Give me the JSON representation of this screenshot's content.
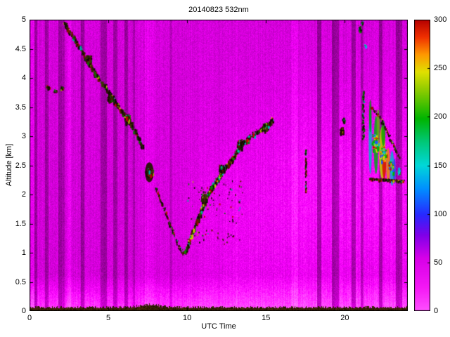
{
  "chart_data": {
    "type": "heatmap",
    "title": "20140823 532nm",
    "xlabel": "UTC Time",
    "ylabel": "Altitude [km]",
    "xlim": [
      0,
      24
    ],
    "ylim": [
      0,
      5
    ],
    "xticks": [
      0,
      5,
      10,
      15,
      20
    ],
    "yticks": [
      0,
      0.5,
      1,
      1.5,
      2,
      2.5,
      3,
      3.5,
      4,
      4.5,
      5
    ],
    "grid": false,
    "legend": "none",
    "colorbar": {
      "min": 0,
      "max": 300,
      "ticks": [
        0,
        50,
        100,
        150,
        200,
        250,
        300
      ],
      "position": "right",
      "stops": [
        [
          0.0,
          "#ff50ff"
        ],
        [
          0.08,
          "#f518f5"
        ],
        [
          0.18,
          "#d800e8"
        ],
        [
          0.26,
          "#8000e8"
        ],
        [
          0.33,
          "#2828ff"
        ],
        [
          0.42,
          "#0090ff"
        ],
        [
          0.5,
          "#00d8d8"
        ],
        [
          0.58,
          "#00c878"
        ],
        [
          0.66,
          "#00b400"
        ],
        [
          0.76,
          "#90cc00"
        ],
        [
          0.82,
          "#e0e000"
        ],
        [
          0.88,
          "#ff9800"
        ],
        [
          0.94,
          "#f03000"
        ],
        [
          1.0,
          "#b40000"
        ]
      ]
    },
    "description": "Lidar backscatter curtain plot: magenta low-signal background with vertical stripe artifacts, dark surface return at 0 km, descending aerosol/cloud layer from 5 km near 02 UTC to 1 km near 09:45 UTC, ascending cloud-top line from 1 km at 10 UTC to 3.3 km at 15:30 UTC, isolated streaks at 17.5 and 19.8 UTC, and a strong multicolor (cyan/green/yellow/red) cloud cluster 21.5-23.5 UTC between 2.2 and 3.6 km",
    "render": {
      "seed": 1234567,
      "base": 0.8,
      "stripes": [
        [
          0.1,
          0.25,
          1.12
        ],
        [
          0.3,
          0.45,
          0.72
        ],
        [
          1.0,
          1.18,
          0.74
        ],
        [
          1.85,
          2.0,
          0.72
        ],
        [
          2.05,
          2.2,
          0.78
        ],
        [
          2.35,
          2.6,
          1.1
        ],
        [
          3.25,
          3.45,
          0.7
        ],
        [
          4.5,
          4.66,
          0.74
        ],
        [
          4.7,
          4.86,
          0.72
        ],
        [
          5.3,
          5.52,
          0.74
        ],
        [
          6.0,
          6.22,
          0.72
        ],
        [
          6.55,
          6.65,
          0.8
        ],
        [
          7.3,
          7.9,
          1.08
        ],
        [
          8.9,
          9.0,
          0.85
        ],
        [
          16.6,
          17.0,
          1.08
        ],
        [
          18.25,
          18.45,
          0.68
        ],
        [
          19.2,
          19.38,
          0.66
        ],
        [
          19.42,
          19.58,
          0.72
        ],
        [
          20.45,
          20.65,
          0.68
        ],
        [
          21.0,
          21.15,
          0.72
        ],
        [
          22.15,
          22.33,
          0.7
        ],
        [
          23.25,
          23.42,
          0.66
        ],
        [
          23.47,
          23.62,
          0.72
        ]
      ],
      "palettes": {
        "dark": [
          [
            "#120a02",
            38
          ],
          [
            "#2b1c05",
            20
          ],
          [
            "#473006",
            10
          ],
          [
            "#6b1200",
            8
          ],
          [
            "#0a7000",
            9
          ],
          [
            "#00a8a8",
            4
          ],
          [
            "#b8b800",
            4
          ],
          [
            "#c00000",
            7
          ]
        ],
        "darkC": [
          [
            "#120a02",
            32
          ],
          [
            "#2b1c05",
            16
          ],
          [
            "#473006",
            8
          ],
          [
            "#6b1200",
            9
          ],
          [
            "#0a8400",
            12
          ],
          [
            "#00b8b8",
            8
          ],
          [
            "#c8c800",
            7
          ],
          [
            "#d00000",
            8
          ]
        ],
        "darkG": [
          [
            "#101202",
            38
          ],
          [
            "#0a6000",
            24
          ],
          [
            "#0c8800",
            16
          ],
          [
            "#123005",
            10
          ],
          [
            "#00a0a0",
            12
          ]
        ],
        "cyanish": [
          [
            "#00c8d8",
            45
          ],
          [
            "#2060ff",
            25
          ],
          [
            "#00e0e0",
            20
          ],
          [
            "#0a8800",
            10
          ]
        ],
        "bright": [
          [
            "#00c8c8",
            18
          ],
          [
            "#00b400",
            22
          ],
          [
            "#d8d800",
            22
          ],
          [
            "#ff8800",
            10
          ],
          [
            "#d00000",
            14
          ],
          [
            "#2050ff",
            14
          ]
        ]
      },
      "features": [
        {
          "kind": "path",
          "palette": "dark",
          "count": 430,
          "sx": 2.5,
          "sy": 4,
          "smin": 1,
          "smax": 3,
          "points": [
            [
              2.15,
              4.97
            ],
            [
              2.5,
              4.8
            ],
            [
              3.0,
              4.6
            ],
            [
              3.5,
              4.38
            ],
            [
              4.05,
              4.12
            ],
            [
              4.6,
              3.92
            ],
            [
              5.15,
              3.7
            ],
            [
              5.7,
              3.48
            ],
            [
              6.25,
              3.3
            ],
            [
              6.75,
              3.05
            ],
            [
              7.1,
              2.82
            ]
          ]
        },
        {
          "kind": "cluster",
          "palette": "dark",
          "count": 150,
          "sx": 5,
          "sy": 7,
          "smin": 1,
          "smax": 3,
          "t": 3.7,
          "a": 4.32
        },
        {
          "kind": "cluster",
          "palette": "dark",
          "count": 120,
          "sx": 4,
          "sy": 6,
          "smin": 1,
          "smax": 3,
          "t": 5.05,
          "a": 3.66
        },
        {
          "kind": "cluster",
          "palette": "dark",
          "count": 130,
          "sx": 5,
          "sy": 7,
          "smin": 1,
          "smax": 3,
          "t": 6.15,
          "a": 3.32
        },
        {
          "kind": "cluster",
          "palette": "dark",
          "count": 35,
          "sx": 4,
          "sy": 4,
          "smin": 1,
          "smax": 2,
          "t": 1.15,
          "a": 3.85
        },
        {
          "kind": "cluster",
          "palette": "dark",
          "count": 25,
          "sx": 4,
          "sy": 3,
          "smin": 1,
          "smax": 2,
          "t": 1.6,
          "a": 3.78
        },
        {
          "kind": "cluster",
          "palette": "dark",
          "count": 30,
          "sx": 4,
          "sy": 4,
          "smin": 1,
          "smax": 2,
          "t": 2.05,
          "a": 3.82
        },
        {
          "kind": "blob",
          "t": 7.6,
          "a": 2.38,
          "rt": 0.28,
          "ra": 0.17,
          "color": "#241603",
          "alpha": 0.95
        },
        {
          "kind": "cluster",
          "palette": "dark",
          "count": 210,
          "sx": 6,
          "sy": 7,
          "smin": 1,
          "smax": 3,
          "t": 7.6,
          "a": 2.38
        },
        {
          "kind": "path",
          "palette": "dark",
          "count": 120,
          "sx": 2.5,
          "sy": 3.5,
          "smin": 1,
          "smax": 2,
          "points": [
            [
              7.95,
              2.15
            ],
            [
              8.45,
              1.8
            ],
            [
              8.95,
              1.45
            ],
            [
              9.45,
              1.12
            ],
            [
              9.75,
              1.0
            ]
          ]
        },
        {
          "kind": "path",
          "palette": "darkC",
          "count": 640,
          "sx": 2,
          "sy": 5,
          "smin": 1,
          "smax": 3,
          "points": [
            [
              9.85,
              1.02
            ],
            [
              10.35,
              1.38
            ],
            [
              10.85,
              1.72
            ],
            [
              11.25,
              2.0
            ],
            [
              11.75,
              2.22
            ],
            [
              12.25,
              2.42
            ],
            [
              12.85,
              2.62
            ],
            [
              13.35,
              2.85
            ],
            [
              13.95,
              3.0
            ],
            [
              14.55,
              3.1
            ],
            [
              15.05,
              3.2
            ],
            [
              15.45,
              3.3
            ]
          ]
        },
        {
          "kind": "cluster",
          "palette": "darkC",
          "count": 110,
          "sx": 4,
          "sy": 8,
          "smin": 1,
          "smax": 3,
          "t": 11.0,
          "a": 1.95
        },
        {
          "kind": "cluster",
          "palette": "darkC",
          "count": 100,
          "sx": 4,
          "sy": 7,
          "smin": 1,
          "smax": 3,
          "t": 12.15,
          "a": 2.45
        },
        {
          "kind": "cluster",
          "palette": "darkC",
          "count": 110,
          "sx": 4,
          "sy": 7,
          "smin": 1,
          "smax": 3,
          "t": 13.3,
          "a": 2.88
        },
        {
          "kind": "cluster",
          "palette": "darkC",
          "count": 120,
          "sx": 5,
          "sy": 7,
          "smin": 1,
          "smax": 3,
          "t": 14.95,
          "a": 3.17
        },
        {
          "kind": "region",
          "palette": "dark",
          "count": 100,
          "smax": 2,
          "t0": 10.0,
          "t1": 13.6,
          "a0": 1.15,
          "a1": 2.25
        },
        {
          "kind": "path",
          "palette": "dark",
          "count": 70,
          "sx": 1.5,
          "sy": 4,
          "smin": 1,
          "smax": 2,
          "points": [
            [
              17.5,
              2.05
            ],
            [
              17.5,
              2.78
            ]
          ]
        },
        {
          "kind": "cluster",
          "palette": "darkG",
          "count": 12,
          "sx": 1.5,
          "sy": 2,
          "smin": 1,
          "smax": 2,
          "t": 17.5,
          "a": 2.72
        },
        {
          "kind": "cluster",
          "palette": "dark",
          "count": 60,
          "sx": 3,
          "sy": 7,
          "smin": 1,
          "smax": 3,
          "t": 19.78,
          "a": 3.1
        },
        {
          "kind": "cluster",
          "palette": "darkG",
          "count": 30,
          "sx": 2.5,
          "sy": 5,
          "smin": 1,
          "smax": 2,
          "t": 19.92,
          "a": 3.28
        },
        {
          "kind": "cluster",
          "palette": "darkG",
          "count": 45,
          "sx": 3,
          "sy": 5,
          "smin": 1,
          "smax": 2,
          "t": 20.95,
          "a": 4.85
        },
        {
          "kind": "cluster",
          "palette": "darkG",
          "count": 18,
          "sx": 2,
          "sy": 3,
          "smin": 1,
          "smax": 2,
          "t": 21.1,
          "a": 4.95
        },
        {
          "kind": "cluster",
          "palette": "cyanish",
          "count": 12,
          "sx": 2,
          "sy": 3,
          "smin": 1,
          "smax": 2,
          "t": 21.3,
          "a": 4.55
        },
        {
          "kind": "path",
          "palette": "darkG",
          "count": 90,
          "sx": 2,
          "sy": 4,
          "smin": 1,
          "smax": 2,
          "points": [
            [
              21.15,
              2.95
            ],
            [
              21.15,
              3.78
            ]
          ]
        },
        {
          "kind": "blob",
          "t": 21.62,
          "a": 2.9,
          "rt": 0.1,
          "ra": 0.55,
          "color": "#00b4c8",
          "alpha": 0.85
        },
        {
          "kind": "blob",
          "t": 21.62,
          "a": 3.35,
          "rt": 0.08,
          "ra": 0.28,
          "color": "#009800",
          "alpha": 0.8
        },
        {
          "kind": "blob",
          "t": 21.98,
          "a": 2.85,
          "rt": 0.14,
          "ra": 0.5,
          "color": "#00a818",
          "alpha": 0.85
        },
        {
          "kind": "blob",
          "t": 22.12,
          "a": 3.18,
          "rt": 0.1,
          "ra": 0.28,
          "color": "#58b800",
          "alpha": 0.8
        },
        {
          "kind": "blob",
          "t": 22.38,
          "a": 2.72,
          "rt": 0.2,
          "ra": 0.45,
          "color": "#c8cc00",
          "alpha": 0.9
        },
        {
          "kind": "blob",
          "t": 22.5,
          "a": 2.55,
          "rt": 0.13,
          "ra": 0.28,
          "color": "#d81800",
          "alpha": 0.92
        },
        {
          "kind": "blob",
          "t": 22.45,
          "a": 3.05,
          "rt": 0.13,
          "ra": 0.22,
          "color": "#00a000",
          "alpha": 0.8
        },
        {
          "kind": "blob",
          "t": 22.75,
          "a": 2.5,
          "rt": 0.12,
          "ra": 0.3,
          "color": "#e09000",
          "alpha": 0.85
        },
        {
          "kind": "blob",
          "t": 23.0,
          "a": 2.45,
          "rt": 0.13,
          "ra": 0.3,
          "color": "#00b0d0",
          "alpha": 0.85
        },
        {
          "kind": "blob",
          "t": 23.15,
          "a": 2.4,
          "rt": 0.09,
          "ra": 0.22,
          "color": "#2048e0",
          "alpha": 0.8
        },
        {
          "kind": "cluster",
          "palette": "bright",
          "count": 150,
          "sx": 6,
          "sy": 14,
          "smin": 1,
          "smax": 3,
          "t": 21.9,
          "a": 2.9
        },
        {
          "kind": "cluster",
          "palette": "bright",
          "count": 170,
          "sx": 6,
          "sy": 12,
          "smin": 1,
          "smax": 3,
          "t": 22.4,
          "a": 2.7
        },
        {
          "kind": "cluster",
          "palette": "bright",
          "count": 100,
          "sx": 5,
          "sy": 9,
          "smin": 1,
          "smax": 3,
          "t": 22.9,
          "a": 2.5
        },
        {
          "kind": "path",
          "palette": "dark",
          "count": 80,
          "sx": 2,
          "sy": 3,
          "smin": 1,
          "smax": 2,
          "points": [
            [
              21.5,
              3.55
            ],
            [
              22.2,
              3.35
            ],
            [
              22.9,
              2.95
            ],
            [
              23.4,
              2.65
            ]
          ]
        },
        {
          "kind": "path",
          "palette": "dark",
          "count": 140,
          "sx": 1.5,
          "sy": 2,
          "smin": 1,
          "smax": 2,
          "points": [
            [
              21.55,
              2.28
            ],
            [
              23.75,
              2.24
            ]
          ]
        },
        {
          "kind": "cluster",
          "palette": "cyanish",
          "count": 35,
          "sx": 2.5,
          "sy": 7,
          "smin": 1,
          "smax": 2,
          "t": 23.42,
          "a": 2.42
        }
      ]
    }
  }
}
